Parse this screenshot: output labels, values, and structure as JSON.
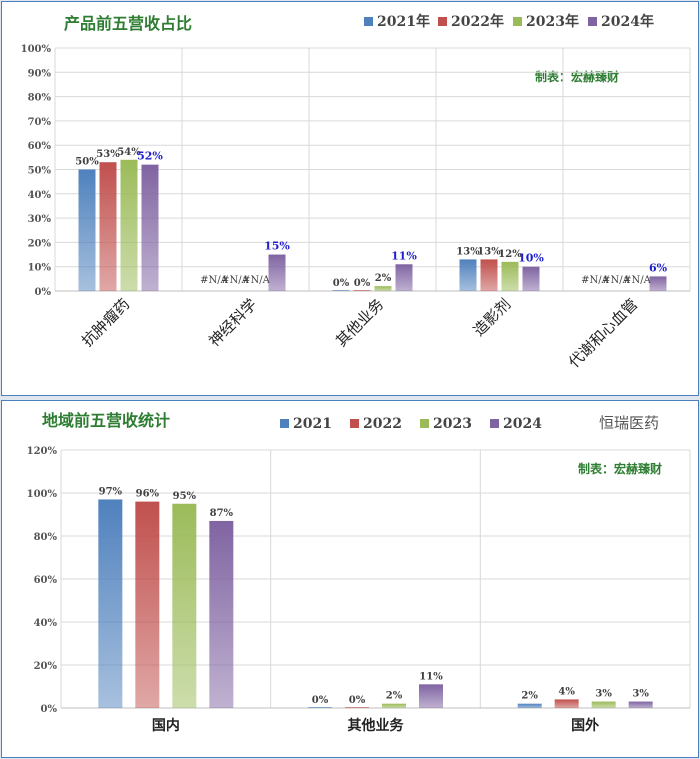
{
  "colors": {
    "s2021": "#4f81bd",
    "s2022": "#c0504d",
    "s2023": "#9bbb59",
    "s2024": "#8064a2",
    "title": "#2e7d32",
    "highlight": "#1f1fd0",
    "grid": "#d9d9d9"
  },
  "chart_data": [
    {
      "type": "bar",
      "title": "产品前五营收占比",
      "note": "制表：宏赫臻财",
      "categories": [
        "抗肿瘤药",
        "神经科学",
        "其他业务",
        "造影剂",
        "代谢和心血管"
      ],
      "ylim": [
        0,
        100
      ],
      "yticks": [
        "0%",
        "10%",
        "20%",
        "30%",
        "40%",
        "50%",
        "60%",
        "70%",
        "80%",
        "90%",
        "100%"
      ],
      "series": [
        {
          "name": "2021年",
          "values": [
            50,
            null,
            0,
            13,
            null
          ],
          "labels": [
            "50%",
            "#N/A",
            "0%",
            "13%",
            "#N/A"
          ]
        },
        {
          "name": "2022年",
          "values": [
            53,
            null,
            0,
            13,
            null
          ],
          "labels": [
            "53%",
            "#N/A",
            "0%",
            "13%",
            "#N/A"
          ]
        },
        {
          "name": "2023年",
          "values": [
            54,
            null,
            2,
            12,
            null
          ],
          "labels": [
            "54%",
            "#N/A",
            "2%",
            "12%",
            "#N/A"
          ]
        },
        {
          "name": "2024年",
          "values": [
            52,
            15,
            11,
            10,
            6
          ],
          "labels": [
            "52%",
            "15%",
            "11%",
            "10%",
            "6%"
          ]
        }
      ]
    },
    {
      "type": "bar",
      "title": "地域前五营收统计",
      "company": "恒瑞医药",
      "note": "制表：宏赫臻财",
      "categories": [
        "国内",
        "其他业务",
        "国外"
      ],
      "ylim": [
        0,
        120
      ],
      "yticks": [
        "0%",
        "20%",
        "40%",
        "60%",
        "80%",
        "100%",
        "120%"
      ],
      "series": [
        {
          "name": "2021",
          "values": [
            97,
            0,
            2
          ],
          "labels": [
            "97%",
            "0%",
            "2%"
          ]
        },
        {
          "name": "2022",
          "values": [
            96,
            0,
            4
          ],
          "labels": [
            "96%",
            "0%",
            "4%"
          ]
        },
        {
          "name": "2023",
          "values": [
            95,
            2,
            3
          ],
          "labels": [
            "95%",
            "2%",
            "3%"
          ]
        },
        {
          "name": "2024",
          "values": [
            87,
            11,
            3
          ],
          "labels": [
            "87%",
            "11%",
            "3%"
          ]
        }
      ]
    }
  ]
}
